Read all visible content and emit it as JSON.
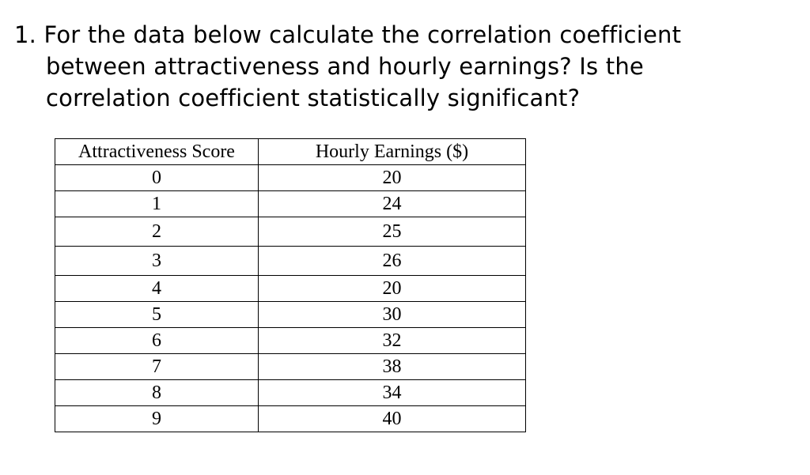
{
  "question": {
    "number": "1.",
    "line1": "For the data below calculate the correlation coefficient",
    "line2": "between attractiveness and hourly earnings? Is the",
    "line3": "correlation coefficient statistically significant?"
  },
  "table": {
    "headers": [
      "Attractiveness Score",
      "Hourly Earnings ($)"
    ],
    "rows": [
      [
        "0",
        "20"
      ],
      [
        "1",
        "24"
      ],
      [
        "2",
        "25"
      ],
      [
        "3",
        "26"
      ],
      [
        "4",
        "20"
      ],
      [
        "5",
        "30"
      ],
      [
        "6",
        "32"
      ],
      [
        "7",
        "38"
      ],
      [
        "8",
        "34"
      ],
      [
        "9",
        "40"
      ]
    ]
  }
}
